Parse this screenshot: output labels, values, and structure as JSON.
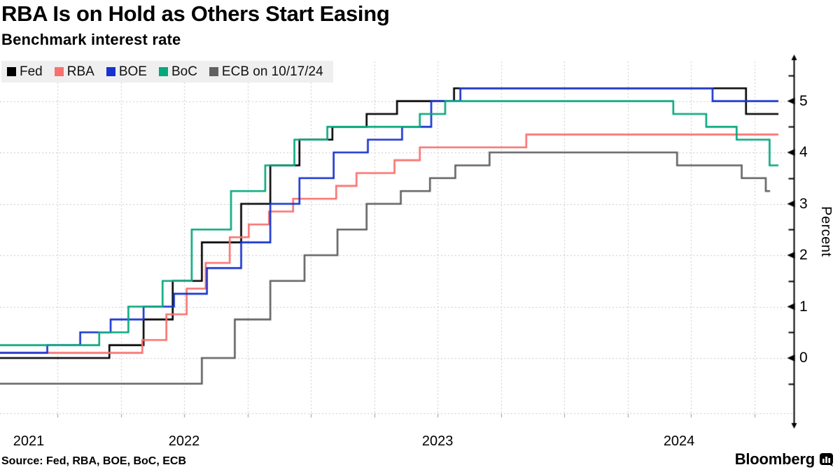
{
  "header": {
    "title": "RBA Is on Hold as Others Start Easing",
    "subtitle": "Benchmark interest rate"
  },
  "footer": {
    "source": "Source: Fed, RBA, BOE, BoC, ECB",
    "brand": "Bloomberg"
  },
  "chart_data": {
    "type": "line",
    "step": true,
    "grid": true,
    "legend_position": "top-left",
    "xlabel": "",
    "ylabel": "Percent",
    "x_unit": "decimal_year",
    "xlim": [
      2021.7735,
      2024.9055
    ],
    "ylim": [
      -1.075,
      5.77
    ],
    "y_ticks": [
      "0",
      "1",
      "2",
      "3",
      "4",
      "5"
    ],
    "y_tick_values": [
      0,
      1,
      2,
      3,
      4,
      5
    ],
    "y_minor_tick_values": [
      -0.5,
      0.5,
      1.5,
      2.5,
      3.5,
      4.5,
      5.5
    ],
    "x_years": [
      "2021",
      "2022",
      "2023",
      "2024"
    ],
    "x_year_values": [
      2021,
      2022,
      2023,
      2024
    ],
    "colors": {
      "grid": "#c9c9c9",
      "axis": "#000000",
      "legend_bg": "#efefef"
    },
    "series": [
      {
        "name": "Fed",
        "color": "#000000",
        "end": 2024.845,
        "points": [
          [
            2021.7735,
            0.0
          ],
          [
            2022.205,
            0.25
          ],
          [
            2022.34,
            0.75
          ],
          [
            2022.455,
            1.5
          ],
          [
            2022.57,
            2.25
          ],
          [
            2022.725,
            3.0
          ],
          [
            2022.84,
            3.75
          ],
          [
            2022.955,
            4.25
          ],
          [
            2023.085,
            4.5
          ],
          [
            2023.22,
            4.75
          ],
          [
            2023.34,
            5.0
          ],
          [
            2023.565,
            5.25
          ],
          [
            2024.717,
            4.75
          ]
        ]
      },
      {
        "name": "RBA",
        "color": "#f8716f",
        "end": 2024.845,
        "points": [
          [
            2021.7735,
            0.1
          ],
          [
            2022.335,
            0.35
          ],
          [
            2022.43,
            0.85
          ],
          [
            2022.51,
            1.35
          ],
          [
            2022.585,
            1.85
          ],
          [
            2022.68,
            2.35
          ],
          [
            2022.755,
            2.6
          ],
          [
            2022.835,
            2.85
          ],
          [
            2022.93,
            3.1
          ],
          [
            2023.1,
            3.35
          ],
          [
            2023.18,
            3.6
          ],
          [
            2023.33,
            3.85
          ],
          [
            2023.43,
            4.1
          ],
          [
            2023.85,
            4.35
          ]
        ]
      },
      {
        "name": "BOE",
        "color": "#1733cf",
        "end": 2024.845,
        "points": [
          [
            2021.7735,
            0.1
          ],
          [
            2021.96,
            0.25
          ],
          [
            2022.09,
            0.5
          ],
          [
            2022.21,
            0.75
          ],
          [
            2022.34,
            1.0
          ],
          [
            2022.46,
            1.25
          ],
          [
            2022.59,
            1.75
          ],
          [
            2022.725,
            2.25
          ],
          [
            2022.84,
            3.0
          ],
          [
            2022.955,
            3.5
          ],
          [
            2023.09,
            4.0
          ],
          [
            2023.225,
            4.25
          ],
          [
            2023.36,
            4.5
          ],
          [
            2023.475,
            5.0
          ],
          [
            2023.59,
            5.25
          ],
          [
            2024.585,
            5.0
          ]
        ]
      },
      {
        "name": "BoC",
        "color": "#06a77d",
        "end": 2024.845,
        "points": [
          [
            2021.7735,
            0.25
          ],
          [
            2022.165,
            0.5
          ],
          [
            2022.28,
            1.0
          ],
          [
            2022.415,
            1.5
          ],
          [
            2022.53,
            2.5
          ],
          [
            2022.685,
            3.25
          ],
          [
            2022.82,
            3.75
          ],
          [
            2022.935,
            4.25
          ],
          [
            2023.065,
            4.5
          ],
          [
            2023.43,
            4.75
          ],
          [
            2023.53,
            5.0
          ],
          [
            2024.43,
            4.75
          ],
          [
            2024.56,
            4.5
          ],
          [
            2024.68,
            4.25
          ],
          [
            2024.81,
            3.75
          ]
        ]
      },
      {
        "name": "ECB on 10/17/24",
        "color": "#616161",
        "end": 2024.812,
        "points": [
          [
            2021.7735,
            -0.5
          ],
          [
            2022.57,
            0.0
          ],
          [
            2022.7,
            0.75
          ],
          [
            2022.84,
            1.5
          ],
          [
            2022.975,
            2.0
          ],
          [
            2023.105,
            2.5
          ],
          [
            2023.22,
            3.0
          ],
          [
            2023.355,
            3.25
          ],
          [
            2023.47,
            3.5
          ],
          [
            2023.57,
            3.75
          ],
          [
            2023.705,
            4.0
          ],
          [
            2024.445,
            3.75
          ],
          [
            2024.7,
            3.5
          ],
          [
            2024.795,
            3.25
          ]
        ]
      }
    ]
  }
}
